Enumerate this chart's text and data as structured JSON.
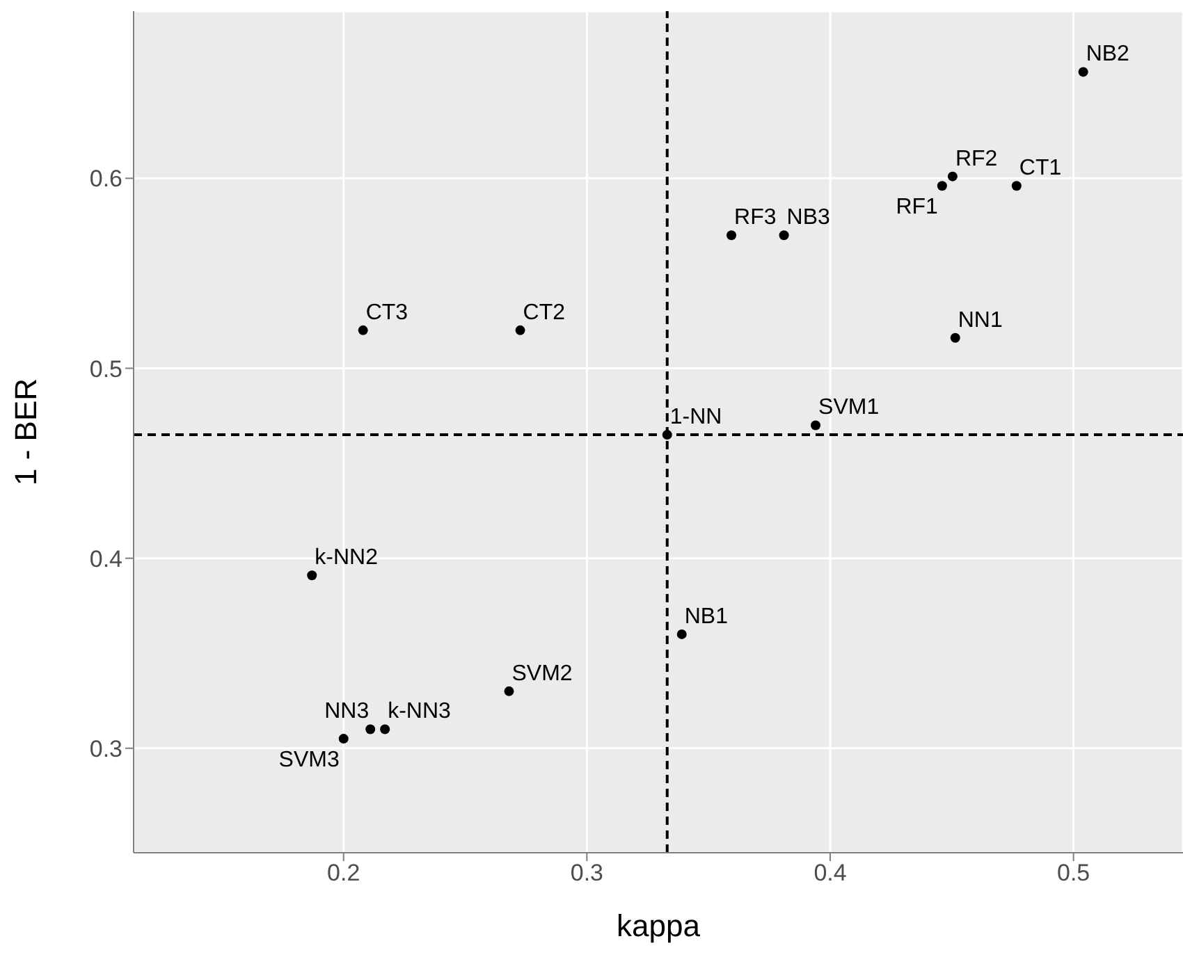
{
  "chart_data": {
    "type": "scatter",
    "xlabel": "kappa",
    "ylabel": "1 - BER",
    "x": [
      0.504,
      0.4503,
      0.4766,
      0.446,
      0.3594,
      0.381,
      0.4514,
      0.208,
      0.2726,
      0.394,
      0.333,
      0.187,
      0.339,
      0.268,
      0.211,
      0.217,
      0.2
    ],
    "series": [
      {
        "color": "#000000",
        "values": [
          0.656,
          0.601,
          0.596,
          0.596,
          0.57,
          0.57,
          0.516,
          0.52,
          0.52,
          0.47,
          0.465,
          0.391,
          0.36,
          0.33,
          0.31,
          0.31,
          0.305
        ]
      }
    ],
    "annotations": [
      {
        "text": "NB2",
        "x": 0.504,
        "y": 0.656
      },
      {
        "text": "RF2",
        "x": 0.4503,
        "y": 0.601
      },
      {
        "text": "CT1",
        "x": 0.4766,
        "y": 0.596
      },
      {
        "text": "RF1",
        "x": 0.446,
        "y": 0.596
      },
      {
        "text": "RF3",
        "x": 0.3594,
        "y": 0.57
      },
      {
        "text": "NB3",
        "x": 0.381,
        "y": 0.57
      },
      {
        "text": "NN1",
        "x": 0.4514,
        "y": 0.516
      },
      {
        "text": "CT3",
        "x": 0.208,
        "y": 0.52
      },
      {
        "text": "CT2",
        "x": 0.2726,
        "y": 0.52
      },
      {
        "text": "SVM1",
        "x": 0.394,
        "y": 0.47
      },
      {
        "text": "1-NN",
        "x": 0.333,
        "y": 0.465
      },
      {
        "text": "k-NN2",
        "x": 0.187,
        "y": 0.391
      },
      {
        "text": "NB1",
        "x": 0.339,
        "y": 0.36
      },
      {
        "text": "SVM2",
        "x": 0.268,
        "y": 0.33
      },
      {
        "text": "NN3",
        "x": 0.211,
        "y": 0.31
      },
      {
        "text": "k-NN3",
        "x": 0.217,
        "y": 0.31
      },
      {
        "text": "SVM3",
        "x": 0.2,
        "y": 0.305
      }
    ],
    "ref_lines": [
      {
        "axis": "x",
        "value": 0.333,
        "color": "#000000",
        "line_style": "dashed"
      },
      {
        "axis": "y",
        "value": 0.465,
        "color": "#000000",
        "line_style": "dashed"
      }
    ],
    "xlim": [
      0.1137,
      0.545
    ],
    "ylim": [
      0.245,
      0.688
    ],
    "xticks": [
      0.2,
      0.3,
      0.4,
      0.5
    ],
    "yticks": [
      0.3,
      0.4,
      0.5,
      0.6
    ],
    "grid": true,
    "marker": "circle"
  }
}
